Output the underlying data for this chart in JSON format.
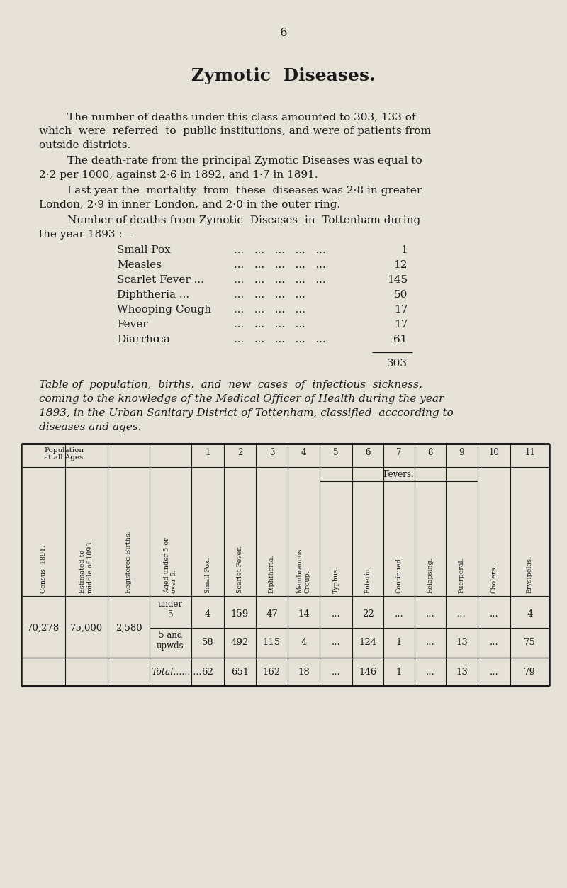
{
  "page_number": "6",
  "title": "Zymotic  Diseases.",
  "bg_color": "#e6e2d8",
  "text_color": "#1a1a1a",
  "diseases": [
    [
      "Small Pox",
      "1"
    ],
    [
      "Measles",
      "12"
    ],
    [
      "Scarlet Fever ...",
      "145"
    ],
    [
      "Diphtheria ...",
      "50"
    ],
    [
      "Whooping Cough",
      "17"
    ],
    [
      "Fever",
      "17"
    ],
    [
      "Diarrhœa",
      "61"
    ]
  ],
  "total": "303",
  "rot_headers": [
    "Census, 1891.",
    "Estimated to\nmiddle of 1893.",
    "Registered Births.",
    "Aged under 5 or\nover 5.",
    "Small Pox.",
    "Scarlet Fever.",
    "Diphtheria.",
    "Membranous\nCroup.",
    "Typhus.",
    "Enteric.",
    "Continued.",
    "Relapsing.",
    "Puerperal.",
    "Cholera.",
    "Erysipelas."
  ],
  "row_under5": [
    "4",
    "159",
    "47",
    "14",
    "...",
    "22",
    "...",
    "...",
    "...",
    "...",
    "4"
  ],
  "row_5up": [
    "58",
    "492",
    "115",
    "4",
    "...",
    "124",
    "1",
    "...",
    "13",
    "...",
    "75"
  ],
  "row_total": [
    "62",
    "651",
    "162",
    "18",
    "...",
    "146",
    "1",
    "...",
    "13",
    "...",
    "79"
  ],
  "pop_census": "70,278",
  "pop_est": "75,000",
  "pop_births": "2,580"
}
